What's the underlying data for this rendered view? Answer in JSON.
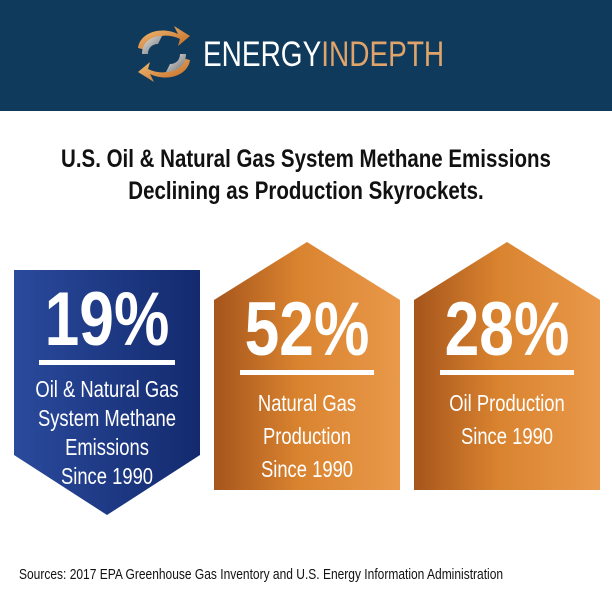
{
  "header": {
    "brand_part1": "ENERGY",
    "brand_part2": "IN",
    "brand_part3": "DEPTH",
    "background": "#0f3a5c",
    "accent": "#e0a46a"
  },
  "title": {
    "line1": "U.S. Oil & Natural Gas System Methane Emissions",
    "line2": "Declining as Production Skyrockets."
  },
  "chart_data": {
    "type": "bar",
    "title": "U.S. Oil & Natural Gas System Methane Emissions Declining as Production Skyrockets.",
    "categories": [
      "Oil & Natural Gas System Methane Emissions Since 1990",
      "Natural Gas Production Since 1990",
      "Oil Production Since 1990"
    ],
    "values": [
      -19,
      52,
      28
    ],
    "unit": "%",
    "items": [
      {
        "value_label": "19%",
        "direction": "down",
        "color": "#1f3a8a",
        "desc_lines": [
          "Oil & Natural Gas",
          "System Methane",
          "Emissions",
          "Since 1990"
        ]
      },
      {
        "value_label": "52%",
        "direction": "up",
        "color": "#d4792a",
        "desc_lines": [
          "Natural Gas",
          "Production",
          "Since 1990"
        ]
      },
      {
        "value_label": "28%",
        "direction": "up",
        "color": "#d4792a",
        "desc_lines": [
          "Oil Production",
          "Since 1990"
        ]
      }
    ]
  },
  "sources": "Sources: 2017 EPA Greenhouse Gas Inventory and U.S. Energy Information Administration"
}
